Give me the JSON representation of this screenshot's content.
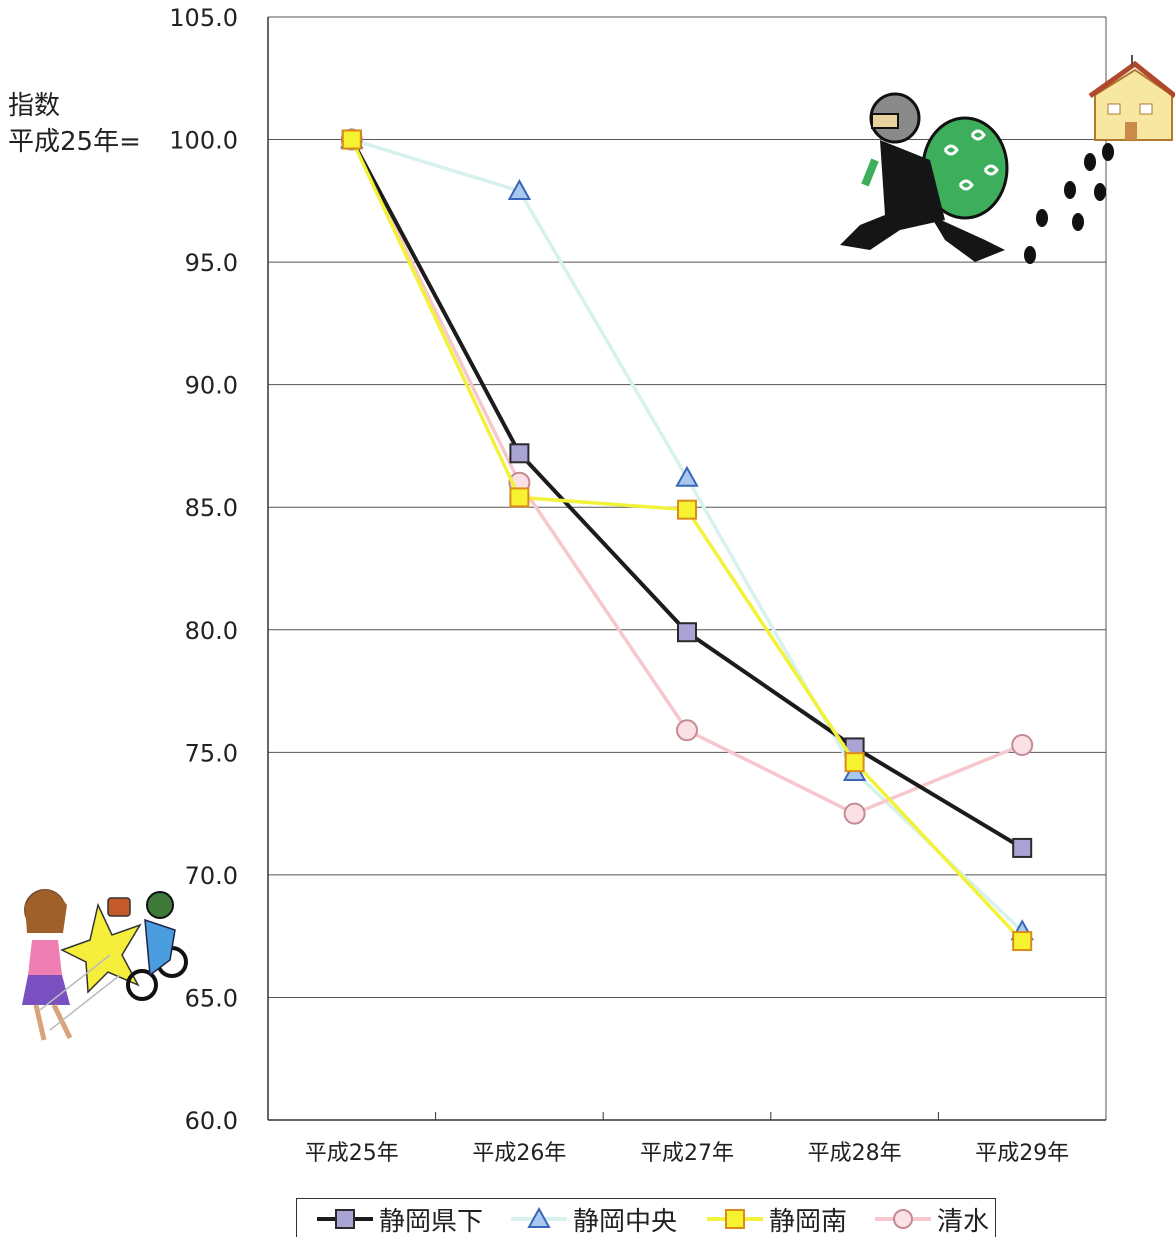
{
  "chart_data": {
    "type": "line",
    "ylabel_lines": [
      "指数",
      "平成25年="
    ],
    "categories": [
      "平成25年",
      "平成26年",
      "平成27年",
      "平成28年",
      "平成29年"
    ],
    "ylim": [
      60,
      105
    ],
    "yticks": [
      "60.0",
      "65.0",
      "70.0",
      "75.0",
      "80.0",
      "85.0",
      "90.0",
      "95.0",
      "100.0",
      "105.0"
    ],
    "grid": true,
    "legend_position": "bottom",
    "series": [
      {
        "name": "静岡中央",
        "marker": "triangle",
        "color": "#d6f1ee",
        "marker_fill": "#a9c7ef",
        "marker_stroke": "#3a66b8",
        "values": [
          100.0,
          97.9,
          86.2,
          74.2,
          67.7
        ]
      },
      {
        "name": "清水",
        "marker": "circle",
        "color": "#f6c7cc",
        "marker_fill": "#fbe1e5",
        "marker_stroke": "#c48a93",
        "values": [
          100.0,
          86.0,
          75.9,
          72.5,
          75.3
        ]
      },
      {
        "name": "静岡県下",
        "marker": "square",
        "color": "#1c1c1c",
        "marker_fill": "#a9a4d4",
        "marker_stroke": "#2a2a2a",
        "values": [
          100.0,
          87.2,
          79.9,
          75.2,
          71.1
        ]
      },
      {
        "name": "静岡南",
        "marker": "square",
        "color": "#f2f23a",
        "marker_fill": "#f6f230",
        "marker_stroke": "#d98c1a",
        "values": [
          100.0,
          85.4,
          84.9,
          74.6,
          67.3
        ]
      }
    ],
    "legend_order": [
      "静岡県下",
      "静岡中央",
      "静岡南",
      "清水"
    ]
  },
  "illustrations": [
    "burglar-with-loot-illustration",
    "house-icon",
    "footprints-icon",
    "purse-snatching-illustration"
  ]
}
